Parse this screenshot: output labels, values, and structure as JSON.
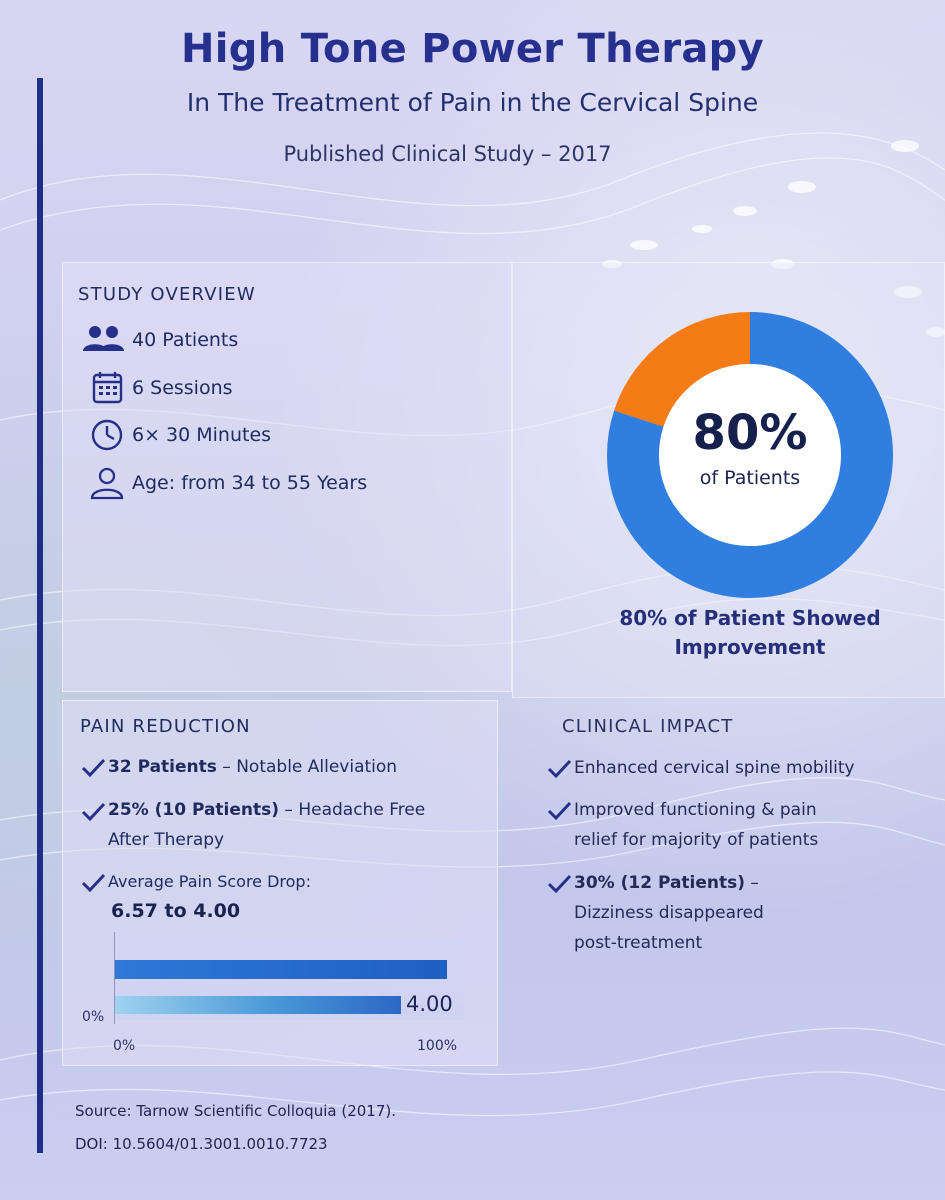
{
  "header": {
    "title": "High Tone Power Therapy",
    "subtitle": "In The Treatment of Pain in the Cervical Spine",
    "published": "Published Clinical Study – 2017"
  },
  "overview": {
    "heading": "STUDY OVERVIEW",
    "items": [
      {
        "icon": "patients-icon",
        "text": "40 Patients"
      },
      {
        "icon": "calendar-icon",
        "text": "6 Sessions"
      },
      {
        "icon": "clock-icon",
        "text": "6× 30 Minutes"
      },
      {
        "icon": "person-icon",
        "text": "Age: from 34 to 55 Years"
      }
    ]
  },
  "improvement": {
    "percent_label": "80%",
    "sub_label": "of Patients",
    "caption_line1": "80% of Patient Showed",
    "caption_line2": "Improvement",
    "improved_fraction": 0.8,
    "colors": {
      "improved": "#2f7ee0",
      "other": "#f47b16"
    }
  },
  "pain": {
    "heading": "PAIN REDUCTION",
    "item1_bold": "32 Patients",
    "item1_rest": " – Notable Alleviation",
    "item2_bold": "25% (10 Patients)",
    "item2_rest": " – Headache Free",
    "item2_line2": "After Therapy",
    "item3": "Average Pain Score Drop:",
    "score": "6.57 to 4.00",
    "bars": {
      "bar1_fraction": 0.95,
      "bar2_fraction": 0.82,
      "value_label": "4.00",
      "y_tick": "0%",
      "x_tick_start": "0%",
      "x_tick_end": "100%"
    }
  },
  "impact": {
    "heading": "CLINICAL IMPACT",
    "item1": "Enhanced cervical spine mobility",
    "item2_line1": "Improved functioning & pain",
    "item2_line2": "relief for majority of patients",
    "item3_bold": "30% (12 Patients)",
    "item3_rest": " –",
    "item3_line2": "Dizziness disappeared",
    "item3_line3": "post-treatment"
  },
  "source": {
    "line1": "Source: Tarnow Scientific Colloquia (2017).",
    "line2": "DOI: 10.5604/01.3001.0010.7723"
  }
}
